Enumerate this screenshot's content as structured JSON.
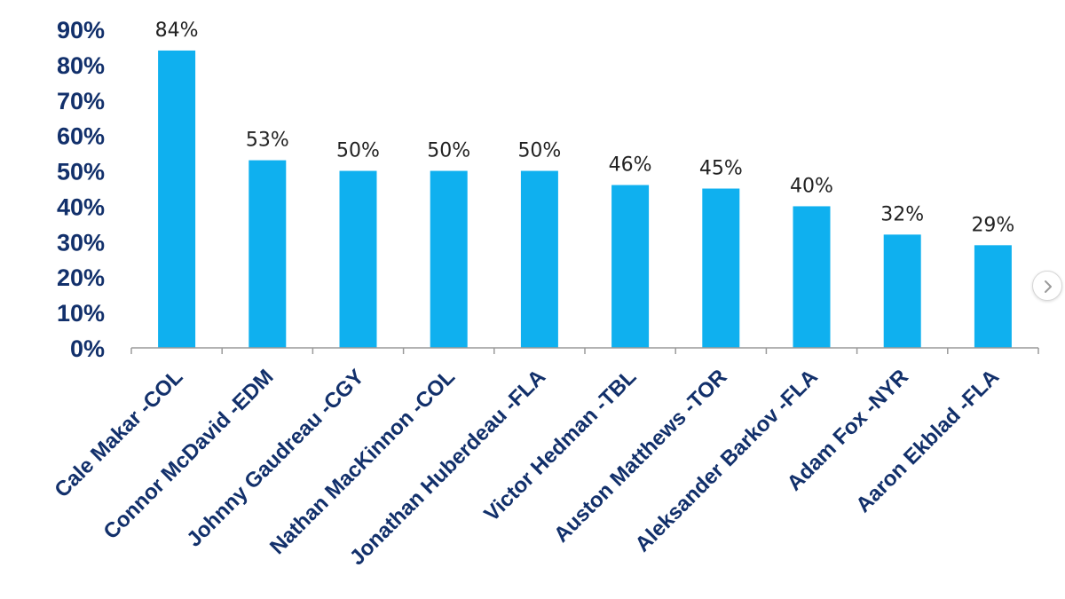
{
  "chart_data": {
    "type": "bar",
    "categories": [
      "Cale Makar -COL",
      "Connor McDavid -EDM",
      "Johnny Gaudreau -CGY",
      "Nathan MacKinnon -COL",
      "Jonathan Huberdeau -FLA",
      "Victor Hedman -TBL",
      "Auston Matthews -TOR",
      "Aleksander Barkov -FLA",
      "Adam Fox -NYR",
      "Aaron Ekblad -FLA"
    ],
    "values": [
      84,
      53,
      50,
      50,
      50,
      46,
      45,
      40,
      32,
      29
    ],
    "data_labels": [
      "84%",
      "53%",
      "50%",
      "50%",
      "50%",
      "46%",
      "45%",
      "40%",
      "32%",
      "29%"
    ],
    "y_ticks": [
      "0%",
      "10%",
      "20%",
      "30%",
      "40%",
      "50%",
      "60%",
      "70%",
      "80%",
      "90%"
    ],
    "ylim": [
      0,
      90
    ],
    "title": "",
    "xlabel": "",
    "ylabel": "",
    "grid": false,
    "legend": "none",
    "bar_color": "#0fb0ef",
    "axis_text_color": "#12306b"
  },
  "carousel": {
    "next_icon": "chevron-right-icon"
  }
}
